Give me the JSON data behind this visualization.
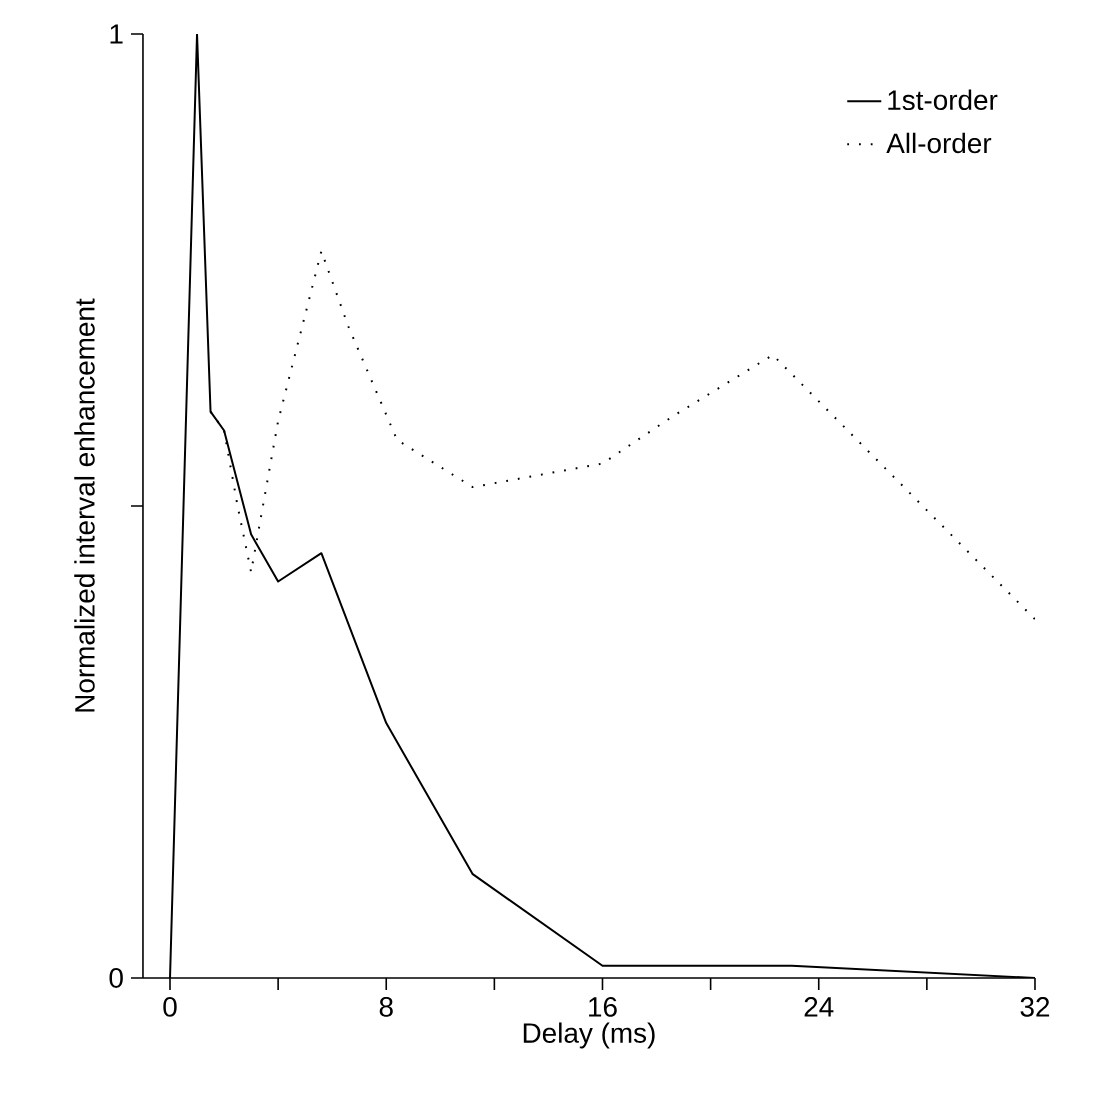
{
  "chart_data": {
    "type": "line",
    "xlabel": "Delay (ms)",
    "ylabel": "Normalized interval enhancement",
    "xlim": [
      -1,
      32
    ],
    "ylim": [
      0,
      1
    ],
    "xticks": [
      0,
      {
        "value": 4,
        "label": null
      },
      8,
      {
        "value": 12,
        "label": null
      },
      16,
      {
        "value": 20,
        "label": null
      },
      24,
      {
        "value": 28,
        "label": null
      },
      32
    ],
    "yticks": [
      0,
      {
        "value": 0.5,
        "label": null
      },
      1
    ],
    "legend": "top right",
    "grid": false,
    "marker": "none",
    "series": [
      {
        "name": "1st-order",
        "color": "#000000",
        "line_style": "solid",
        "x": [
          0,
          1,
          1.5,
          2,
          3,
          4,
          5.6,
          8,
          11.2,
          16,
          23,
          32
        ],
        "values": [
          0,
          1,
          0.6,
          0.58,
          0.47,
          0.42,
          0.45,
          0.27,
          0.11,
          0.013,
          0.013,
          0
        ]
      },
      {
        "name": "All-order",
        "color": "#000000",
        "line_style": "dotted",
        "x": [
          1.5,
          2,
          2.5,
          3,
          4,
          5.6,
          6.6,
          8.4,
          11.2,
          16,
          18.6,
          22.3,
          32
        ],
        "values": [
          0.6,
          0.58,
          0.5,
          0.43,
          0.59,
          0.77,
          0.69,
          0.57,
          0.52,
          0.545,
          0.595,
          0.66,
          0.38
        ]
      }
    ]
  }
}
